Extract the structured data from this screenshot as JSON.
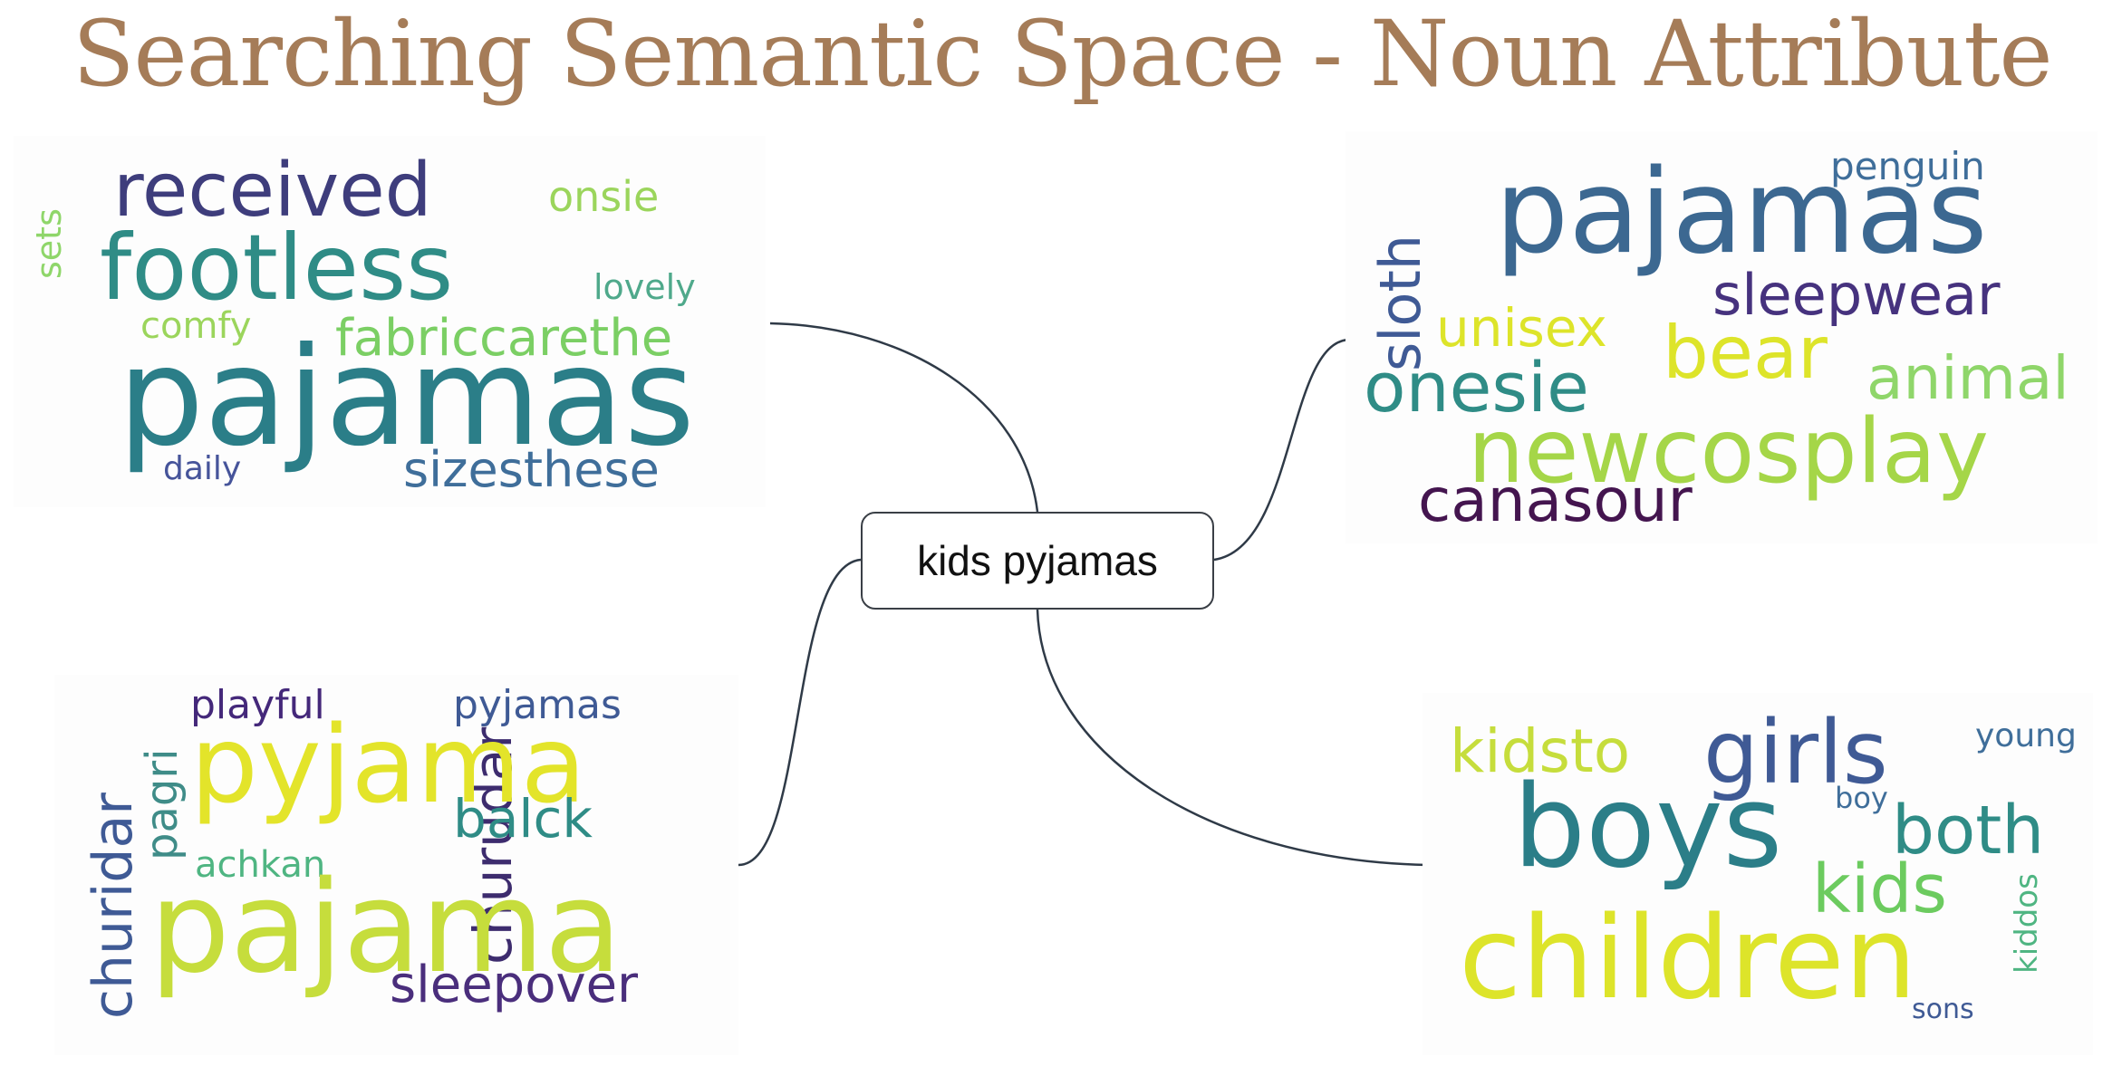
{
  "title": "Searching Semantic Space - Noun Attribute",
  "center_node": {
    "label": "kids pyjamas"
  },
  "clouds": {
    "top_left": [
      "sets",
      "received",
      "onsie",
      "footless",
      "lovely",
      "comfy",
      "fabriccarethe",
      "pajamas",
      "daily",
      "sizesthese"
    ],
    "top_right": [
      "sloth",
      "pajamas",
      "penguin",
      "sleepwear",
      "unisex",
      "bear",
      "onesie",
      "animal",
      "newcosplay",
      "canasour"
    ],
    "bottom_left": [
      "churidar",
      "pagri",
      "playful",
      "pyjamas",
      "churudar",
      "pyjama",
      "balck",
      "achkan",
      "pajama",
      "sleepover"
    ],
    "bottom_right": [
      "kidsto",
      "girls",
      "young",
      "boys",
      "boy",
      "both",
      "kids",
      "kiddos",
      "children",
      "sons"
    ]
  },
  "colors": {
    "title": "#a57c58",
    "connector": "#2f3a47",
    "node_border": "#3a3f46"
  }
}
